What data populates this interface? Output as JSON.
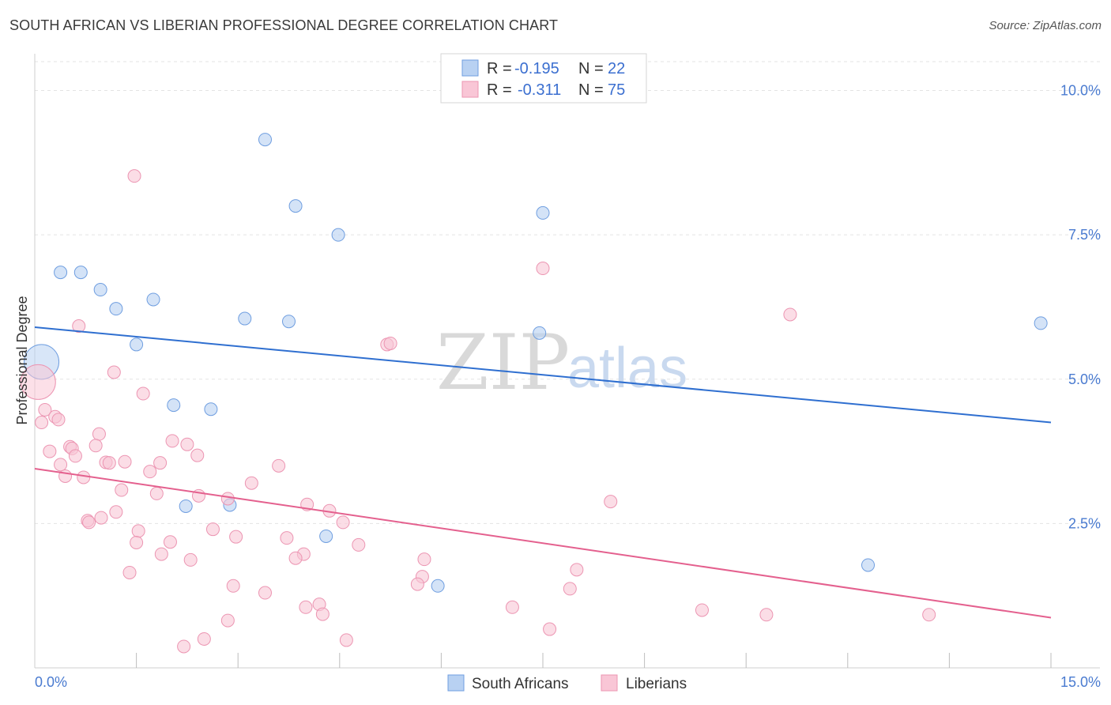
{
  "title": "SOUTH AFRICAN VS LIBERIAN PROFESSIONAL DEGREE CORRELATION CHART",
  "source": "Source: ZipAtlas.com",
  "watermark": {
    "zip": "ZIP",
    "atlas": "atlas"
  },
  "colors": {
    "blue_fill": "#b8d1f2",
    "blue_stroke": "#6f9ee0",
    "blue_line": "#2f6fd0",
    "pink_fill": "#f9c6d6",
    "pink_stroke": "#ec95b2",
    "pink_line": "#e4608e",
    "axis_label": "#4a7bd0",
    "grid": "#e3e3e3"
  },
  "legend": {
    "r_label": "R =",
    "n_label": "N =",
    "series": [
      {
        "r": "-0.195",
        "n": "22"
      },
      {
        "r": "-0.311",
        "n": "75"
      }
    ]
  },
  "chart_data": {
    "type": "scatter",
    "title": "SOUTH AFRICAN VS LIBERIAN PROFESSIONAL DEGREE CORRELATION CHART",
    "xlabel": "",
    "ylabel": "Professional Degree",
    "xlim": [
      0,
      15
    ],
    "ylim": [
      0,
      10.5
    ],
    "x_tick_labels": {
      "min": "0.0%",
      "max": "15.0%"
    },
    "y_ticks": [
      {
        "value": 2.5,
        "label": "2.5%"
      },
      {
        "value": 5.0,
        "label": "5.0%"
      },
      {
        "value": 7.5,
        "label": "7.5%"
      },
      {
        "value": 10.0,
        "label": "10.0%"
      }
    ],
    "series": [
      {
        "name": "South Africans",
        "trend": {
          "x0": 0,
          "y0": 5.9,
          "x1": 15,
          "y1": 4.25
        },
        "points": [
          {
            "x": 0.1,
            "y": 5.3,
            "big": true
          },
          {
            "x": 0.38,
            "y": 6.85
          },
          {
            "x": 0.68,
            "y": 6.85
          },
          {
            "x": 0.97,
            "y": 6.55
          },
          {
            "x": 1.2,
            "y": 6.22
          },
          {
            "x": 1.75,
            "y": 6.38
          },
          {
            "x": 1.5,
            "y": 5.6
          },
          {
            "x": 3.4,
            "y": 9.15
          },
          {
            "x": 3.85,
            "y": 8.0
          },
          {
            "x": 4.48,
            "y": 7.5
          },
          {
            "x": 7.5,
            "y": 7.88
          },
          {
            "x": 3.1,
            "y": 6.05
          },
          {
            "x": 3.75,
            "y": 6.0
          },
          {
            "x": 7.45,
            "y": 5.8
          },
          {
            "x": 14.85,
            "y": 5.97
          },
          {
            "x": 2.05,
            "y": 4.55
          },
          {
            "x": 2.6,
            "y": 4.48
          },
          {
            "x": 2.23,
            "y": 2.8
          },
          {
            "x": 2.88,
            "y": 2.82
          },
          {
            "x": 4.3,
            "y": 2.28
          },
          {
            "x": 5.95,
            "y": 1.42
          },
          {
            "x": 12.3,
            "y": 1.78
          }
        ]
      },
      {
        "name": "Liberians",
        "trend": {
          "x0": 0,
          "y0": 3.45,
          "x1": 15,
          "y1": 0.87
        },
        "points": [
          {
            "x": 0.05,
            "y": 4.95,
            "big": true
          },
          {
            "x": 1.47,
            "y": 8.52
          },
          {
            "x": 7.5,
            "y": 6.92
          },
          {
            "x": 11.15,
            "y": 6.12
          },
          {
            "x": 0.65,
            "y": 5.92
          },
          {
            "x": 5.2,
            "y": 5.6
          },
          {
            "x": 5.25,
            "y": 5.62
          },
          {
            "x": 1.17,
            "y": 5.12
          },
          {
            "x": 1.6,
            "y": 4.75
          },
          {
            "x": 0.15,
            "y": 4.47
          },
          {
            "x": 0.3,
            "y": 4.35
          },
          {
            "x": 0.1,
            "y": 4.25
          },
          {
            "x": 0.35,
            "y": 4.3
          },
          {
            "x": 0.95,
            "y": 4.05
          },
          {
            "x": 2.03,
            "y": 3.93
          },
          {
            "x": 2.25,
            "y": 3.87
          },
          {
            "x": 0.52,
            "y": 3.83
          },
          {
            "x": 0.9,
            "y": 3.85
          },
          {
            "x": 0.22,
            "y": 3.75
          },
          {
            "x": 0.55,
            "y": 3.8
          },
          {
            "x": 0.6,
            "y": 3.67
          },
          {
            "x": 2.4,
            "y": 3.68
          },
          {
            "x": 0.38,
            "y": 3.52
          },
          {
            "x": 1.05,
            "y": 3.56
          },
          {
            "x": 1.1,
            "y": 3.55
          },
          {
            "x": 1.33,
            "y": 3.57
          },
          {
            "x": 1.85,
            "y": 3.55
          },
          {
            "x": 3.6,
            "y": 3.5
          },
          {
            "x": 1.7,
            "y": 3.4
          },
          {
            "x": 0.45,
            "y": 3.32
          },
          {
            "x": 0.72,
            "y": 3.3
          },
          {
            "x": 3.2,
            "y": 3.2
          },
          {
            "x": 1.28,
            "y": 3.08
          },
          {
            "x": 1.8,
            "y": 3.02
          },
          {
            "x": 2.42,
            "y": 2.98
          },
          {
            "x": 2.85,
            "y": 2.93
          },
          {
            "x": 8.5,
            "y": 2.88
          },
          {
            "x": 4.02,
            "y": 2.83
          },
          {
            "x": 4.35,
            "y": 2.72
          },
          {
            "x": 1.2,
            "y": 2.7
          },
          {
            "x": 0.98,
            "y": 2.6
          },
          {
            "x": 0.78,
            "y": 2.55
          },
          {
            "x": 0.8,
            "y": 2.52
          },
          {
            "x": 4.55,
            "y": 2.52
          },
          {
            "x": 2.63,
            "y": 2.4
          },
          {
            "x": 1.53,
            "y": 2.37
          },
          {
            "x": 2.97,
            "y": 2.27
          },
          {
            "x": 3.72,
            "y": 2.25
          },
          {
            "x": 2.0,
            "y": 2.18
          },
          {
            "x": 1.5,
            "y": 2.17
          },
          {
            "x": 4.78,
            "y": 2.13
          },
          {
            "x": 1.87,
            "y": 1.97
          },
          {
            "x": 3.97,
            "y": 1.97
          },
          {
            "x": 3.85,
            "y": 1.9
          },
          {
            "x": 2.3,
            "y": 1.87
          },
          {
            "x": 5.75,
            "y": 1.88
          },
          {
            "x": 8.0,
            "y": 1.7
          },
          {
            "x": 1.4,
            "y": 1.65
          },
          {
            "x": 5.72,
            "y": 1.58
          },
          {
            "x": 5.65,
            "y": 1.45
          },
          {
            "x": 2.93,
            "y": 1.42
          },
          {
            "x": 7.9,
            "y": 1.37
          },
          {
            "x": 3.4,
            "y": 1.3
          },
          {
            "x": 4.2,
            "y": 1.1
          },
          {
            "x": 4.0,
            "y": 1.05
          },
          {
            "x": 7.05,
            "y": 1.05
          },
          {
            "x": 9.85,
            "y": 1.0
          },
          {
            "x": 4.25,
            "y": 0.93
          },
          {
            "x": 10.8,
            "y": 0.92
          },
          {
            "x": 13.2,
            "y": 0.92
          },
          {
            "x": 2.85,
            "y": 0.82
          },
          {
            "x": 7.6,
            "y": 0.67
          },
          {
            "x": 2.5,
            "y": 0.5
          },
          {
            "x": 4.6,
            "y": 0.48
          },
          {
            "x": 2.2,
            "y": 0.37
          }
        ]
      }
    ]
  }
}
